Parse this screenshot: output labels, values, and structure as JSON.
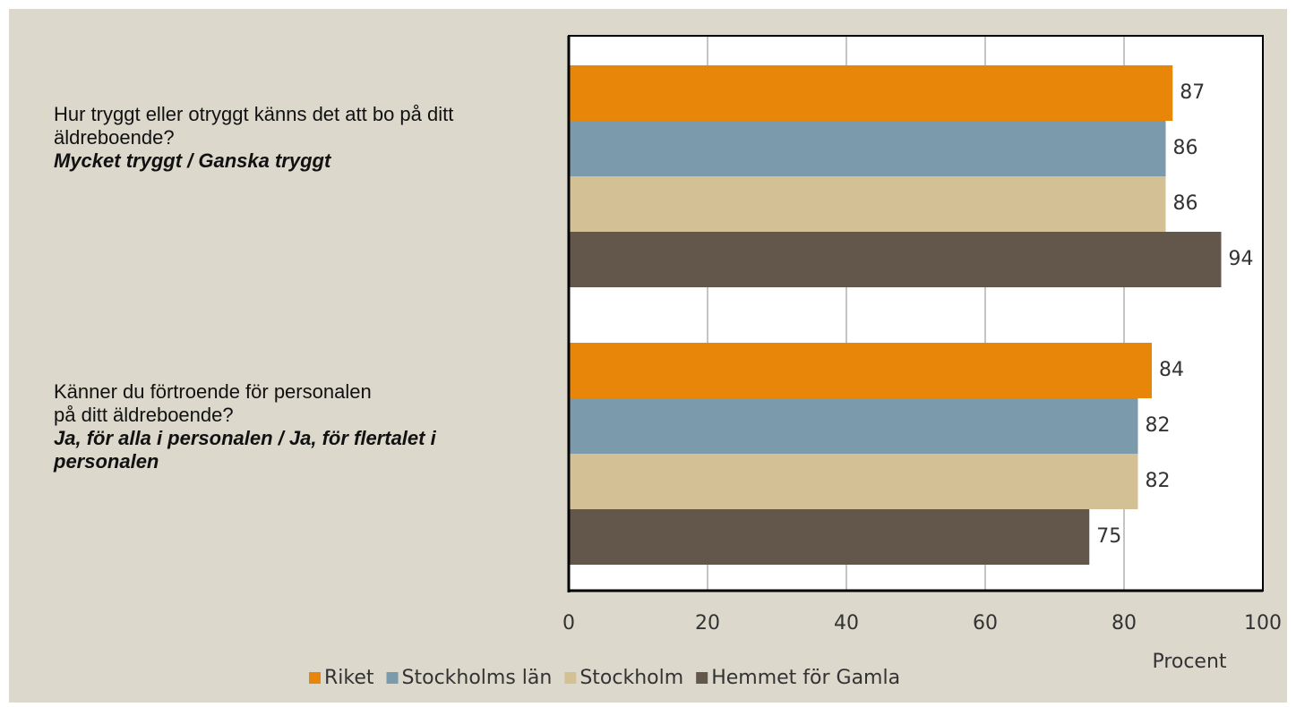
{
  "chart_data": {
    "type": "hbar",
    "categories": [
      "Hur tryggt eller otryggt känns det att bo på ditt äldreboende?",
      "Känner du förtroende för personalen\npå ditt äldreboende?"
    ],
    "category_notes": [
      "Mycket tryggt / Ganska tryggt",
      "Ja, för alla i personalen / Ja, för flertalet i personalen"
    ],
    "series": [
      {
        "name": "Riket",
        "color": "#e8860a",
        "values": [
          87,
          84
        ]
      },
      {
        "name": "Stockholms län",
        "color": "#7b9aab",
        "values": [
          86,
          82
        ]
      },
      {
        "name": "Stockholm",
        "color": "#d4c095",
        "values": [
          86,
          82
        ]
      },
      {
        "name": "Hemmet för Gamla",
        "color": "#63564b",
        "values": [
          94,
          75
        ]
      }
    ],
    "xlabel": "Procent",
    "xlim": [
      0,
      100
    ],
    "xticks": [
      0,
      20,
      40,
      60,
      80,
      100
    ],
    "grid": true
  }
}
